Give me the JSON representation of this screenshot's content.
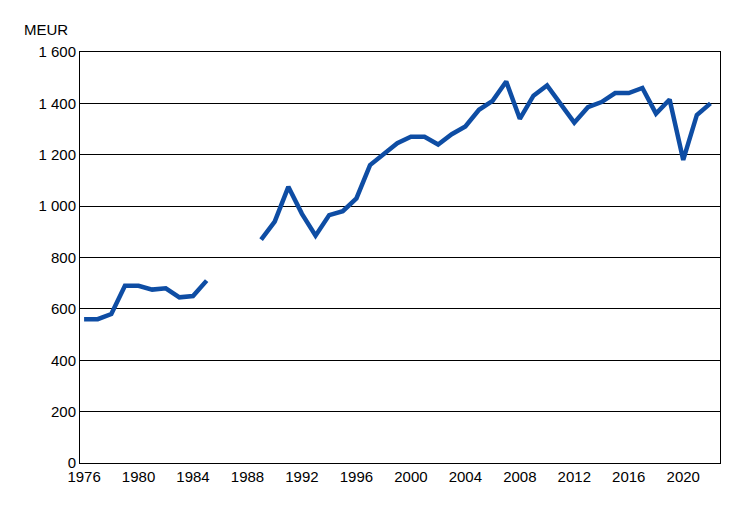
{
  "chart_data": {
    "type": "line",
    "y_label": "MEUR",
    "x": [
      1976,
      1977,
      1978,
      1979,
      1980,
      1981,
      1982,
      1983,
      1984,
      1985,
      1986,
      1987,
      1988,
      1989,
      1990,
      1991,
      1992,
      1993,
      1994,
      1995,
      1996,
      1997,
      1998,
      1999,
      2000,
      2001,
      2002,
      2003,
      2004,
      2005,
      2006,
      2007,
      2008,
      2009,
      2010,
      2011,
      2012,
      2013,
      2014,
      2015,
      2016,
      2017,
      2018,
      2019,
      2020,
      2021,
      2022
    ],
    "values": [
      560,
      560,
      580,
      690,
      690,
      675,
      680,
      645,
      650,
      710,
      null,
      null,
      null,
      870,
      940,
      1075,
      970,
      885,
      965,
      980,
      1030,
      1160,
      1200,
      1245,
      1270,
      1270,
      1240,
      1280,
      1310,
      1375,
      1410,
      1485,
      1340,
      1430,
      1470,
      1400,
      1325,
      1385,
      1405,
      1440,
      1440,
      1460,
      1360,
      1415,
      1180,
      1355,
      1400
    ],
    "color": "#0e4da4",
    "xlim": [
      1975.7,
      2022.7
    ],
    "xticks": [
      1976,
      1980,
      1984,
      1988,
      1992,
      1996,
      2000,
      2004,
      2008,
      2012,
      2016,
      2020
    ],
    "ylim": [
      0,
      1600
    ],
    "yticks": [
      0,
      200,
      400,
      600,
      800,
      {
        "value": 1000,
        "label": "1 000"
      },
      {
        "value": 1200,
        "label": "1 200"
      },
      {
        "value": 1400,
        "label": "1 400"
      },
      {
        "value": 1600,
        "label": "1 600"
      }
    ],
    "grid": "y"
  }
}
